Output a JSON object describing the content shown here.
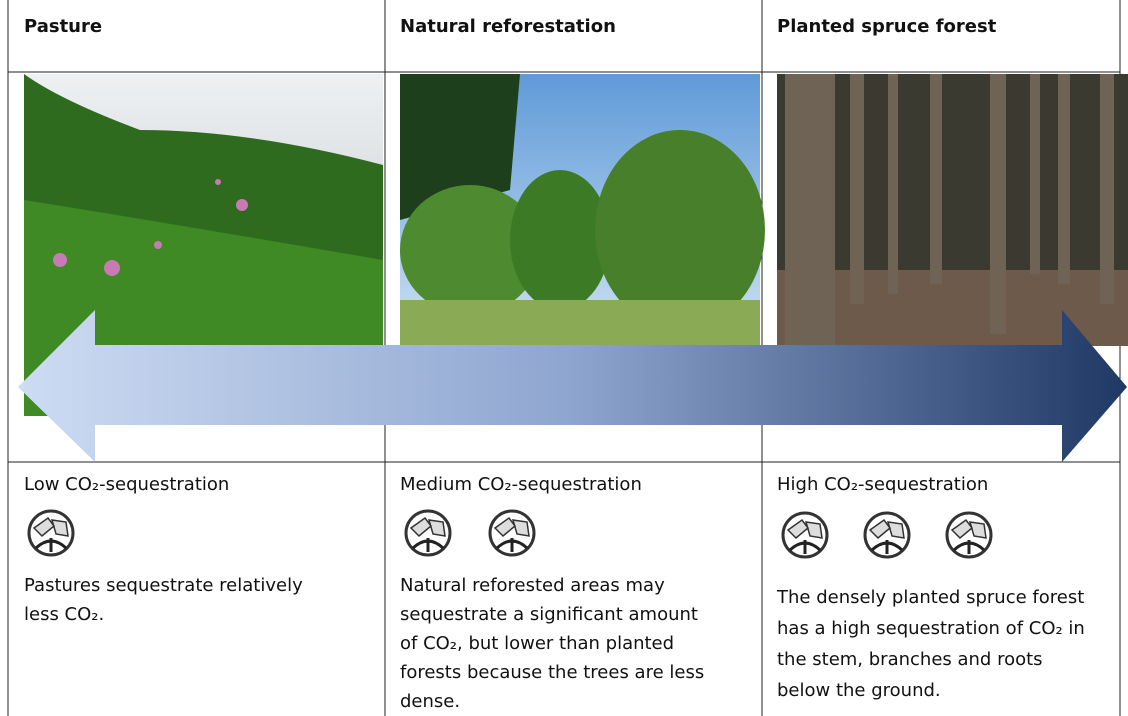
{
  "columns": [
    {
      "title": "Pasture",
      "level": "Low CO₂-sequestration",
      "description": [
        "Pastures sequestrate relatively",
        "less CO₂."
      ]
    },
    {
      "title": "Natural reforestation",
      "level": "Medium CO₂-sequestration",
      "description": [
        "Natural reforested areas may",
        "sequestrate a significant amount",
        "of CO₂, but lower than planted",
        "forests because the trees are less",
        "dense."
      ]
    },
    {
      "title": "Planted spruce forest",
      "level": "High CO₂-sequestration",
      "description": [
        "The densely planted spruce forest",
        "has a high sequestration of CO₂ in",
        "the stem, branches and roots",
        "below the ground."
      ]
    }
  ]
}
